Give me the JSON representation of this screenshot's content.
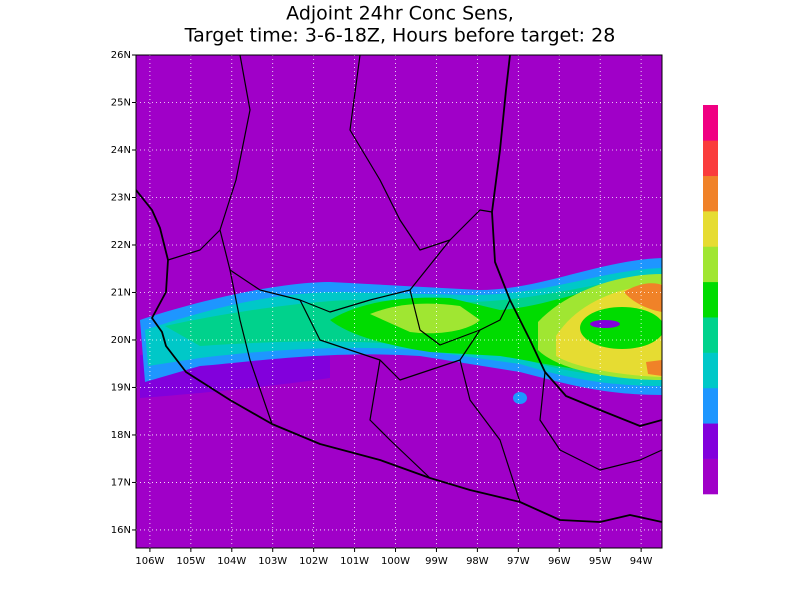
{
  "chart_data": {
    "type": "map",
    "title": "Adjoint 24hr Conc Sens,",
    "subtitle": "Target time: 3-6-18Z, Hours before target: 28",
    "xlim": [
      -106.34,
      -93.49
    ],
    "ylim": [
      15.62,
      26
    ],
    "xticks": [
      {
        "value": -106,
        "label": "106W"
      },
      {
        "value": -105,
        "label": "105W"
      },
      {
        "value": -104,
        "label": "104W"
      },
      {
        "value": -103,
        "label": "103W"
      },
      {
        "value": -102,
        "label": "102W"
      },
      {
        "value": -101,
        "label": "101W"
      },
      {
        "value": -100,
        "label": "100W"
      },
      {
        "value": -99,
        "label": "99W"
      },
      {
        "value": -98,
        "label": "98W"
      },
      {
        "value": -97,
        "label": "97W"
      },
      {
        "value": -96,
        "label": "96W"
      },
      {
        "value": -95,
        "label": "95W"
      },
      {
        "value": -94,
        "label": "94W"
      }
    ],
    "yticks": [
      {
        "value": 16,
        "label": "16N"
      },
      {
        "value": 17,
        "label": "17N"
      },
      {
        "value": 18,
        "label": "18N"
      },
      {
        "value": 19,
        "label": "19N"
      },
      {
        "value": 20,
        "label": "20N"
      },
      {
        "value": 21,
        "label": "21N"
      },
      {
        "value": 22,
        "label": "22N"
      },
      {
        "value": 23,
        "label": "23N"
      },
      {
        "value": 24,
        "label": "24N"
      },
      {
        "value": 25,
        "label": "25N"
      },
      {
        "value": 26,
        "label": "26N"
      }
    ],
    "grid": true,
    "colorbar": [
      "#a000c8",
      "#8200dc",
      "#1e96ff",
      "#00c8c8",
      "#00d28c",
      "#00dc00",
      "#a0e632",
      "#e6dc32",
      "#f08228",
      "#fa3c3c",
      "#f00082"
    ]
  }
}
